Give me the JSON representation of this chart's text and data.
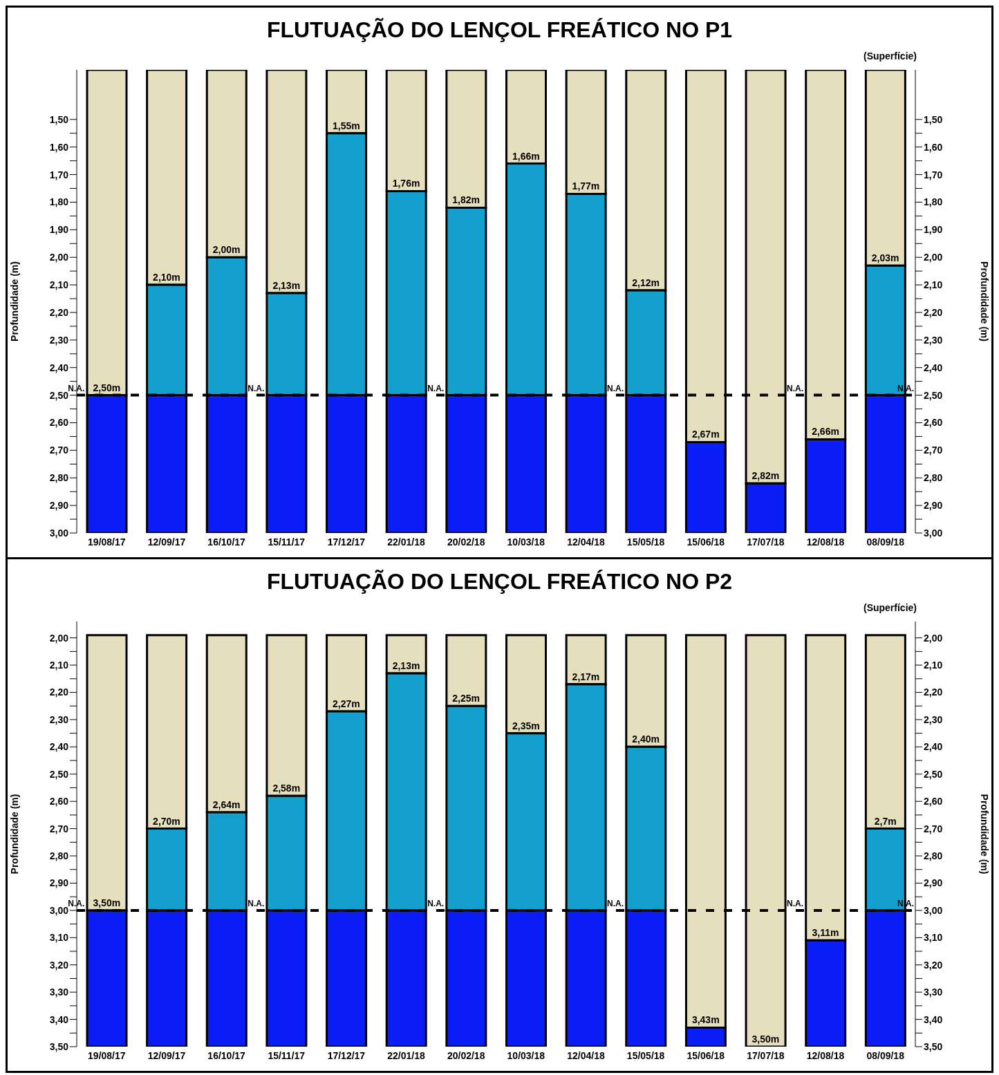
{
  "chart_data": [
    {
      "type": "bar",
      "title": "FLUTUAÇÃO DO LENÇOL FREÁTICO NO P1",
      "ylabel": "Profundidade (m)",
      "y2label": "Profundidade (m)",
      "categories": [
        "19/08/17",
        "12/09/17",
        "16/10/17",
        "15/11/17",
        "17/12/17",
        "22/01/18",
        "20/02/18",
        "10/03/18",
        "12/04/18",
        "15/05/18",
        "15/06/18",
        "17/07/18",
        "12/08/18",
        "08/09/18"
      ],
      "series": [
        {
          "color": "#e5dfbd",
          "base": [
            1.32,
            1.32,
            1.32,
            1.32,
            1.32,
            1.32,
            1.32,
            1.32,
            1.32,
            1.32,
            1.32,
            1.32,
            1.32,
            1.32
          ],
          "values": [
            1.18,
            0.78,
            0.68,
            0.81,
            0.23,
            0.44,
            0.5,
            0.34,
            0.45,
            0.8,
            1.35,
            1.5,
            1.34,
            0.71
          ],
          "value_labels": [
            "2,50m",
            "2,10m",
            "2,00m",
            "2,13m",
            "1,55m",
            "1,76m",
            "1,82m",
            "1,66m",
            "1,77m",
            "2,12m",
            "2,67m",
            "2,82m",
            "2,66m",
            "2,03m"
          ]
        },
        {
          "color": "#14a0ce",
          "base": [
            null,
            2.1,
            2.0,
            2.13,
            1.55,
            1.76,
            1.82,
            1.66,
            1.77,
            2.12,
            null,
            null,
            null,
            2.03
          ],
          "values": [
            null,
            0.4,
            0.5,
            0.37,
            0.95,
            0.74,
            0.68,
            0.84,
            0.73,
            0.38,
            null,
            null,
            null,
            0.47
          ]
        },
        {
          "color": "#0a1ef5",
          "base": [
            2.5,
            2.5,
            2.5,
            2.5,
            2.5,
            2.5,
            2.5,
            2.5,
            2.5,
            2.5,
            2.67,
            2.82,
            2.66,
            2.5
          ],
          "values": [
            0.5,
            0.5,
            0.5,
            0.5,
            0.5,
            0.5,
            0.5,
            0.5,
            0.5,
            0.5,
            0.33,
            0.18,
            0.34,
            0.5
          ]
        }
      ],
      "ylim": [
        3.0,
        1.32
      ],
      "y2lim": [
        3.0,
        1.32
      ],
      "yticks": [
        {
          "value": 1.5,
          "label": "1,50"
        },
        {
          "value": 1.55,
          "label": null
        },
        {
          "value": 1.6,
          "label": "1,60"
        },
        {
          "value": 1.65,
          "label": null
        },
        {
          "value": 1.7,
          "label": "1,70"
        },
        {
          "value": 1.75,
          "label": null
        },
        {
          "value": 1.8,
          "label": "1,80"
        },
        {
          "value": 1.85,
          "label": null
        },
        {
          "value": 1.9,
          "label": "1,90"
        },
        {
          "value": 1.95,
          "label": null
        },
        {
          "value": 2.0,
          "label": "2,00"
        },
        {
          "value": 2.05,
          "label": null
        },
        {
          "value": 2.1,
          "label": "2,10"
        },
        {
          "value": 2.15,
          "label": null
        },
        {
          "value": 2.2,
          "label": "2,20"
        },
        {
          "value": 2.25,
          "label": null
        },
        {
          "value": 2.3,
          "label": "2,30"
        },
        {
          "value": 2.35,
          "label": null
        },
        {
          "value": 2.4,
          "label": "2,40"
        },
        {
          "value": 2.45,
          "label": null
        },
        {
          "value": 2.5,
          "label": "2,50"
        },
        {
          "value": 2.55,
          "label": null
        },
        {
          "value": 2.6,
          "label": "2,60"
        },
        {
          "value": 2.65,
          "label": null
        },
        {
          "value": 2.7,
          "label": "2,70"
        },
        {
          "value": 2.75,
          "label": null
        },
        {
          "value": 2.8,
          "label": "2,80"
        },
        {
          "value": 2.85,
          "label": null
        },
        {
          "value": 2.9,
          "label": "2,90"
        },
        {
          "value": 2.95,
          "label": null
        },
        {
          "value": 3.0,
          "label": "3,00"
        }
      ],
      "y2ticks": [
        {
          "value": 1.5,
          "label": "1,50"
        },
        {
          "value": 1.55,
          "label": null
        },
        {
          "value": 1.6,
          "label": "1,60"
        },
        {
          "value": 1.65,
          "label": null
        },
        {
          "value": 1.7,
          "label": "1,70"
        },
        {
          "value": 1.75,
          "label": null
        },
        {
          "value": 1.8,
          "label": "1,80"
        },
        {
          "value": 1.85,
          "label": null
        },
        {
          "value": 1.9,
          "label": "1,90"
        },
        {
          "value": 1.95,
          "label": null
        },
        {
          "value": 2.0,
          "label": "2,00"
        },
        {
          "value": 2.05,
          "label": null
        },
        {
          "value": 2.1,
          "label": "2,10"
        },
        {
          "value": 2.15,
          "label": null
        },
        {
          "value": 2.2,
          "label": "2,20"
        },
        {
          "value": 2.25,
          "label": null
        },
        {
          "value": 2.3,
          "label": "2,30"
        },
        {
          "value": 2.35,
          "label": null
        },
        {
          "value": 2.4,
          "label": "2,40"
        },
        {
          "value": 2.45,
          "label": null
        },
        {
          "value": 2.5,
          "label": "2,50"
        },
        {
          "value": 2.55,
          "label": null
        },
        {
          "value": 2.6,
          "label": "2,60"
        },
        {
          "value": 2.65,
          "label": null
        },
        {
          "value": 2.7,
          "label": "2,70"
        },
        {
          "value": 2.75,
          "label": null
        },
        {
          "value": 2.8,
          "label": "2,80"
        },
        {
          "value": 2.85,
          "label": null
        },
        {
          "value": 2.9,
          "label": "2,90"
        },
        {
          "value": 2.95,
          "label": null
        },
        {
          "value": 3.0,
          "label": "3,00"
        }
      ],
      "ref_lines": [
        {
          "axis": "y",
          "value": 2.5,
          "label": "N.A.",
          "line_style": "dashed",
          "color": "#000000"
        }
      ],
      "annotations": [
        "(Superfície)",
        {
          "text": "N.A.",
          "x": "19/08/17",
          "y": 2.5
        },
        {
          "text": "N.A.",
          "x": "15/11/17",
          "y": 2.5
        },
        {
          "text": "N.A.",
          "x": "20/02/18",
          "y": 2.5
        },
        {
          "text": "N.A.",
          "x": "15/05/18",
          "y": 2.5
        },
        {
          "text": "N.A.",
          "x": "12/08/18",
          "y": 2.5
        }
      ]
    },
    {
      "type": "bar",
      "title": "FLUTUAÇÃO DO LENÇOL FREÁTICO NO P2",
      "ylabel": "Profundidade (m)",
      "y2label": "Profundidade (m)",
      "categories": [
        "19/08/17",
        "12/09/17",
        "16/10/17",
        "15/11/17",
        "17/12/17",
        "22/01/18",
        "20/02/18",
        "10/03/18",
        "12/04/18",
        "15/05/18",
        "15/06/18",
        "17/07/18",
        "12/08/18",
        "08/09/18"
      ],
      "series": [
        {
          "color": "#e5dfbd",
          "base": [
            1.99,
            1.99,
            1.99,
            1.99,
            1.99,
            1.99,
            1.99,
            1.99,
            1.99,
            1.99,
            1.99,
            1.99,
            1.99,
            1.99
          ],
          "values": [
            1.01,
            0.71,
            0.65,
            0.59,
            0.28,
            0.14,
            0.26,
            0.36,
            0.18,
            0.41,
            1.44,
            1.51,
            1.12,
            0.71
          ],
          "value_labels": [
            null,
            "2,70m",
            "2,64m",
            "2,58m",
            "2,27m",
            "2,13m",
            "2,25m",
            "2,35m",
            "2,17m",
            "2,40m",
            "3,43m",
            "3,50m",
            "3,11m",
            "2,7m"
          ]
        },
        {
          "color": "#14a0ce",
          "base": [
            null,
            2.7,
            2.64,
            2.58,
            2.27,
            2.13,
            2.25,
            2.35,
            2.17,
            2.4,
            null,
            null,
            null,
            2.7
          ],
          "values": [
            null,
            0.3,
            0.36,
            0.42,
            0.73,
            0.87,
            0.75,
            0.65,
            0.83,
            0.6,
            null,
            null,
            null,
            0.3
          ]
        },
        {
          "color": "#0a1ef5",
          "base": [
            3.0,
            3.0,
            3.0,
            3.0,
            3.0,
            3.0,
            3.0,
            3.0,
            3.0,
            3.0,
            3.43,
            null,
            3.11,
            3.0
          ],
          "values": [
            0.5,
            0.5,
            0.5,
            0.5,
            0.5,
            0.5,
            0.5,
            0.5,
            0.5,
            0.5,
            0.07,
            null,
            0.39,
            0.5
          ]
        }
      ],
      "ylim": [
        3.5,
        1.94
      ],
      "y2lim": [
        3.5,
        1.94
      ],
      "yticks": [
        {
          "value": 2.0,
          "label": "2,00"
        },
        {
          "value": 2.05,
          "label": null
        },
        {
          "value": 2.1,
          "label": "2,10"
        },
        {
          "value": 2.15,
          "label": null
        },
        {
          "value": 2.2,
          "label": "2,20"
        },
        {
          "value": 2.25,
          "label": null
        },
        {
          "value": 2.3,
          "label": "2,30"
        },
        {
          "value": 2.35,
          "label": null
        },
        {
          "value": 2.4,
          "label": "2,40"
        },
        {
          "value": 2.45,
          "label": null
        },
        {
          "value": 2.5,
          "label": "2,50"
        },
        {
          "value": 2.55,
          "label": null
        },
        {
          "value": 2.6,
          "label": "2,60"
        },
        {
          "value": 2.65,
          "label": null
        },
        {
          "value": 2.7,
          "label": "2,70"
        },
        {
          "value": 2.75,
          "label": null
        },
        {
          "value": 2.8,
          "label": "2,80"
        },
        {
          "value": 2.85,
          "label": null
        },
        {
          "value": 2.9,
          "label": "2,90"
        },
        {
          "value": 2.95,
          "label": null
        },
        {
          "value": 3.0,
          "label": "3,00"
        },
        {
          "value": 3.05,
          "label": null
        },
        {
          "value": 3.1,
          "label": "3,10"
        },
        {
          "value": 3.15,
          "label": null
        },
        {
          "value": 3.2,
          "label": "3,20"
        },
        {
          "value": 3.25,
          "label": null
        },
        {
          "value": 3.3,
          "label": "3,30"
        },
        {
          "value": 3.35,
          "label": null
        },
        {
          "value": 3.4,
          "label": "3,40"
        },
        {
          "value": 3.45,
          "label": null
        },
        {
          "value": 3.5,
          "label": "3,50"
        }
      ],
      "y2ticks": [
        {
          "value": 2.0,
          "label": "2,00"
        },
        {
          "value": 2.05,
          "label": null
        },
        {
          "value": 2.1,
          "label": "2,10"
        },
        {
          "value": 2.15,
          "label": null
        },
        {
          "value": 2.2,
          "label": "2,20"
        },
        {
          "value": 2.25,
          "label": null
        },
        {
          "value": 2.3,
          "label": "2,30"
        },
        {
          "value": 2.35,
          "label": null
        },
        {
          "value": 2.4,
          "label": "2,40"
        },
        {
          "value": 2.45,
          "label": null
        },
        {
          "value": 2.5,
          "label": "2,50"
        },
        {
          "value": 2.55,
          "label": null
        },
        {
          "value": 2.6,
          "label": "2,60"
        },
        {
          "value": 2.65,
          "label": null
        },
        {
          "value": 2.7,
          "label": "2,70"
        },
        {
          "value": 2.75,
          "label": null
        },
        {
          "value": 2.8,
          "label": "2,80"
        },
        {
          "value": 2.85,
          "label": null
        },
        {
          "value": 2.9,
          "label": "2,90"
        },
        {
          "value": 2.95,
          "label": null
        },
        {
          "value": 3.0,
          "label": "3,00"
        },
        {
          "value": 3.05,
          "label": null
        },
        {
          "value": 3.1,
          "label": "3,10"
        },
        {
          "value": 3.15,
          "label": null
        },
        {
          "value": 3.2,
          "label": "3,20"
        },
        {
          "value": 3.25,
          "label": null
        },
        {
          "value": 3.3,
          "label": "3,30"
        },
        {
          "value": 3.35,
          "label": null
        },
        {
          "value": 3.4,
          "label": "3,40"
        },
        {
          "value": 3.45,
          "label": null
        },
        {
          "value": 3.5,
          "label": "3,50"
        }
      ],
      "ref_lines": [
        {
          "axis": "y",
          "value": 3.0,
          "label": "N.A.",
          "line_style": "dashed",
          "color": "#000000"
        }
      ],
      "annotations": [
        "(Superfície)",
        {
          "text": "3,50m",
          "x": "19/08/17",
          "y": 3.0
        },
        {
          "text": "N.A.",
          "x": "19/08/17",
          "y": 3.0
        },
        {
          "text": "N.A.",
          "x": "15/11/17",
          "y": 3.0
        },
        {
          "text": "N.A.",
          "x": "20/02/18",
          "y": 3.0
        },
        {
          "text": "N.A.",
          "x": "15/05/18",
          "y": 3.0
        },
        {
          "text": "N.A.",
          "x": "12/08/18",
          "y": 3.0
        }
      ]
    }
  ]
}
